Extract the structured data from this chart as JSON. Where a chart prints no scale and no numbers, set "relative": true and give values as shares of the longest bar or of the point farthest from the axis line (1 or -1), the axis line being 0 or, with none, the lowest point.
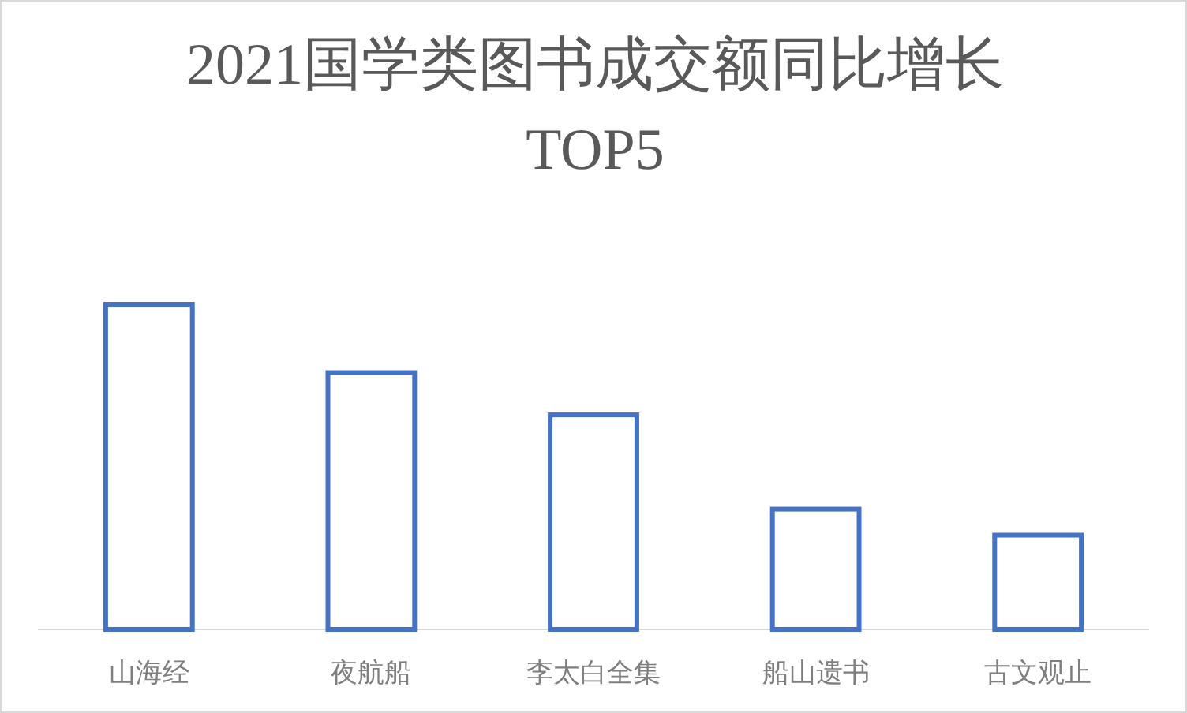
{
  "chart_data": {
    "type": "bar",
    "title": "2021国学类图书成交额同比增长TOP5",
    "categories": [
      "山海经",
      "夜航船",
      "李太白全集",
      "船山遗书",
      "古文观止"
    ],
    "relative": true,
    "series": [
      {
        "color": "#4472c4",
        "values": [
          1,
          0.79,
          0.66,
          0.37,
          0.29
        ]
      }
    ]
  }
}
